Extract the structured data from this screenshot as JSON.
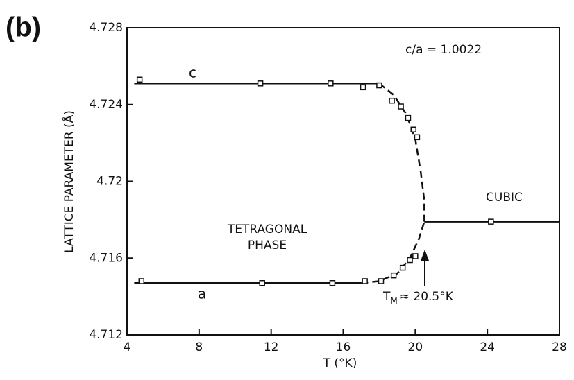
{
  "chart_data": {
    "type": "scatter",
    "panel": "(b)",
    "xlabel": "T (°K)",
    "ylabel": "LATTICE PARAMETER (Å)",
    "xlim": [
      4,
      28
    ],
    "xticks": [
      4,
      8,
      12,
      16,
      20,
      24,
      28
    ],
    "ylim": [
      4.712,
      4.728
    ],
    "yticks": [
      4.712,
      4.716,
      4.72,
      4.724,
      4.728
    ],
    "annotations": {
      "ratio": "c/a = 1.0022",
      "phase1": "TETRAGONAL",
      "phase2": "PHASE",
      "tm": "T",
      "tm_sub": "M",
      "tm_rest": "≈ 20.5°K"
    },
    "color": "#111111",
    "series": [
      {
        "name": "c",
        "x": [
          4.7,
          11.4,
          15.3,
          17.1,
          18.0,
          18.7,
          19.2,
          19.6,
          19.9,
          20.1
        ],
        "values": [
          4.7253,
          4.7251,
          4.7251,
          4.7249,
          4.725,
          4.7242,
          4.7239,
          4.7233,
          4.7227,
          4.7223
        ],
        "lines": [
          {
            "style": "solid",
            "x": [
              4.4,
              18.0
            ],
            "values": [
              4.7251,
              4.7251
            ]
          },
          {
            "style": "dashed",
            "x": [
              18.0,
              18.8,
              19.5,
              20.0,
              20.3,
              20.5,
              20.5
            ],
            "values": [
              4.7251,
              4.7245,
              4.7235,
              4.7222,
              4.7205,
              4.719,
              4.7179
            ]
          }
        ]
      },
      {
        "name": "a",
        "x": [
          4.8,
          11.5,
          15.4,
          17.2,
          18.1,
          18.8,
          19.3,
          19.7,
          20.0
        ],
        "values": [
          4.7148,
          4.7147,
          4.7147,
          4.7148,
          4.7148,
          4.7151,
          4.7155,
          4.7159,
          4.7161
        ],
        "lines": [
          {
            "style": "solid",
            "x": [
              4.4,
              17.0
            ],
            "values": [
              4.7147,
              4.7147
            ]
          },
          {
            "style": "dashed",
            "x": [
              17.0,
              18.0,
              19.0,
              19.7,
              20.2,
              20.5
            ],
            "values": [
              4.7147,
              4.7148,
              4.7152,
              4.716,
              4.717,
              4.7179
            ]
          }
        ]
      },
      {
        "name": "CUBIC",
        "x": [
          24.2
        ],
        "values": [
          4.7179
        ],
        "lines": [
          {
            "style": "solid",
            "x": [
              20.5,
              28
            ],
            "values": [
              4.7179,
              4.7179
            ]
          }
        ]
      }
    ]
  }
}
